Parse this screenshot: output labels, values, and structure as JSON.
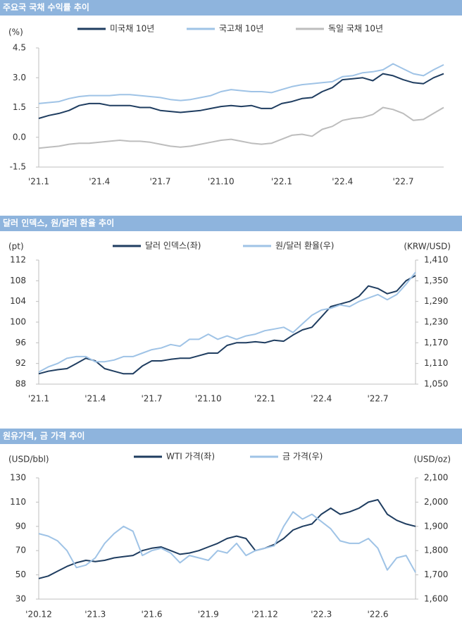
{
  "chart_data": [
    {
      "type": "line",
      "title": "주요국 국채 수익률 추이",
      "y_label": "(%)",
      "categories": [
        "'21.1",
        null,
        null,
        null,
        null,
        null,
        "'21.4",
        null,
        null,
        null,
        null,
        null,
        "'21.7",
        null,
        null,
        null,
        null,
        null,
        "'21.10",
        null,
        null,
        null,
        null,
        null,
        "'22.1",
        null,
        null,
        null,
        null,
        null,
        "'22.4",
        null,
        null,
        null,
        null,
        null,
        "'22.7",
        null,
        null,
        null,
        null
      ],
      "series": [
        {
          "name": "미국채 10년",
          "color": "#1f3d60",
          "values": [
            0.95,
            1.1,
            1.2,
            1.35,
            1.6,
            1.7,
            1.7,
            1.6,
            1.6,
            1.6,
            1.5,
            1.5,
            1.35,
            1.3,
            1.25,
            1.3,
            1.35,
            1.45,
            1.55,
            1.6,
            1.55,
            1.6,
            1.45,
            1.45,
            1.7,
            1.8,
            1.95,
            2.0,
            2.3,
            2.5,
            2.9,
            2.95,
            3.0,
            2.85,
            3.2,
            3.1,
            2.9,
            2.75,
            2.7,
            3.0,
            3.2
          ]
        },
        {
          "name": "국고채 10년",
          "color": "#9fc3e6",
          "values": [
            1.7,
            1.75,
            1.8,
            1.95,
            2.05,
            2.1,
            2.1,
            2.1,
            2.15,
            2.15,
            2.1,
            2.05,
            2.0,
            1.9,
            1.85,
            1.9,
            2.0,
            2.1,
            2.3,
            2.4,
            2.35,
            2.3,
            2.3,
            2.25,
            2.4,
            2.55,
            2.65,
            2.7,
            2.75,
            2.8,
            3.05,
            3.1,
            3.25,
            3.3,
            3.4,
            3.7,
            3.45,
            3.2,
            3.1,
            3.4,
            3.65
          ]
        },
        {
          "name": "독일 국채 10년",
          "color": "#bdbdbd",
          "values": [
            -0.55,
            -0.5,
            -0.45,
            -0.35,
            -0.3,
            -0.3,
            -0.25,
            -0.2,
            -0.15,
            -0.2,
            -0.2,
            -0.25,
            -0.35,
            -0.45,
            -0.5,
            -0.45,
            -0.35,
            -0.25,
            -0.15,
            -0.1,
            -0.2,
            -0.3,
            -0.35,
            -0.3,
            -0.1,
            0.1,
            0.15,
            0.05,
            0.4,
            0.55,
            0.85,
            0.95,
            1.0,
            1.15,
            1.5,
            1.4,
            1.2,
            0.85,
            0.9,
            1.2,
            1.5
          ]
        }
      ],
      "ylim": [
        -1.5,
        4.5
      ],
      "yticks": [
        -1.5,
        {
          "value": 0,
          "label": "0.0"
        },
        1.5,
        {
          "value": 3,
          "label": "3.0"
        },
        4.5
      ]
    },
    {
      "type": "line",
      "title": "달러 인덱스, 원/달러 환율 추이",
      "y_label": "(pt)",
      "y2_label": "(KRW/USD)",
      "categories": [
        "'21.1",
        null,
        null,
        null,
        null,
        null,
        "'21.4",
        null,
        null,
        null,
        null,
        null,
        "'21.7",
        null,
        null,
        null,
        null,
        null,
        "'21.10",
        null,
        null,
        null,
        null,
        null,
        "'22.1",
        null,
        null,
        null,
        null,
        null,
        "'22.4",
        null,
        null,
        null,
        null,
        null,
        "'22.7",
        null,
        null,
        null,
        null
      ],
      "series": [
        {
          "name": "달러 인덱스(좌)",
          "color": "#1f3d60",
          "values": [
            90,
            90.5,
            90.8,
            91,
            92,
            93,
            92.5,
            91,
            90.5,
            90,
            90,
            91.5,
            92.5,
            92.5,
            92.8,
            93,
            93,
            93.5,
            94,
            94,
            95.5,
            96,
            96,
            96.2,
            96,
            96.5,
            96.3,
            97.5,
            98.5,
            99,
            101,
            103,
            103.5,
            104,
            105,
            107,
            106.5,
            105.5,
            106,
            108,
            109
          ]
        },
        {
          "name": "원/달러 환율(우)",
          "color": "#9fc3e6",
          "axis": "y2",
          "values": [
            1085,
            1100,
            1110,
            1125,
            1130,
            1130,
            1115,
            1115,
            1120,
            1130,
            1130,
            1140,
            1150,
            1155,
            1165,
            1160,
            1180,
            1180,
            1195,
            1180,
            1190,
            1180,
            1190,
            1195,
            1205,
            1210,
            1215,
            1200,
            1225,
            1250,
            1265,
            1270,
            1280,
            1275,
            1290,
            1300,
            1310,
            1295,
            1310,
            1340,
            1375
          ]
        }
      ],
      "ylim": [
        88,
        112
      ],
      "yticks": [
        88,
        92,
        96,
        100,
        104,
        108,
        112
      ],
      "y2lim": [
        1050,
        1410
      ],
      "y2ticks": [
        {
          "value": 1050,
          "label": "1,050"
        },
        {
          "value": 1110,
          "label": "1,110"
        },
        {
          "value": 1170,
          "label": "1,170"
        },
        {
          "value": 1230,
          "label": "1,230"
        },
        {
          "value": 1290,
          "label": "1,290"
        },
        {
          "value": 1350,
          "label": "1,350"
        },
        {
          "value": 1410,
          "label": "1,410"
        }
      ]
    },
    {
      "type": "line",
      "title": "원유가격, 금 가격 추이",
      "y_label": "(USD/bbl)",
      "y2_label": "(USD/oz)",
      "categories": [
        "'20.12",
        null,
        null,
        null,
        null,
        null,
        "'21.3",
        null,
        null,
        null,
        null,
        null,
        "'21.6",
        null,
        null,
        null,
        null,
        null,
        "'21.9",
        null,
        null,
        null,
        null,
        null,
        "'21.12",
        null,
        null,
        null,
        null,
        null,
        "'22.3",
        null,
        null,
        null,
        null,
        null,
        "'22.6",
        null,
        null,
        null,
        null
      ],
      "series": [
        {
          "name": "WTI 가격(좌)",
          "color": "#1f3d60",
          "values": [
            47,
            49,
            53,
            57,
            60,
            62,
            61,
            62,
            64,
            65,
            66,
            70,
            72,
            73,
            70,
            67,
            68,
            70,
            73,
            76,
            80,
            82,
            80,
            70,
            72,
            75,
            80,
            87,
            90,
            92,
            100,
            105,
            100,
            102,
            105,
            110,
            112,
            100,
            95,
            92,
            90
          ]
        },
        {
          "name": "금 가격(우)",
          "color": "#9fc3e6",
          "axis": "y2",
          "values": [
            1870,
            1860,
            1840,
            1800,
            1730,
            1740,
            1770,
            1830,
            1870,
            1900,
            1880,
            1780,
            1800,
            1810,
            1790,
            1750,
            1780,
            1770,
            1760,
            1800,
            1790,
            1830,
            1780,
            1800,
            1810,
            1820,
            1900,
            1960,
            1930,
            1950,
            1920,
            1890,
            1840,
            1830,
            1830,
            1850,
            1810,
            1720,
            1770,
            1780,
            1710
          ]
        }
      ],
      "ylim": [
        30,
        130
      ],
      "yticks": [
        30,
        50,
        70,
        90,
        110,
        130
      ],
      "y2lim": [
        1600,
        2100
      ],
      "y2ticks": [
        {
          "value": 1600,
          "label": "1,600"
        },
        {
          "value": 1700,
          "label": "1,700"
        },
        {
          "value": 1800,
          "label": "1,800"
        },
        {
          "value": 1900,
          "label": "1,900"
        },
        {
          "value": 2000,
          "label": "2,000"
        },
        {
          "value": 2100,
          "label": "2,100"
        }
      ]
    }
  ]
}
